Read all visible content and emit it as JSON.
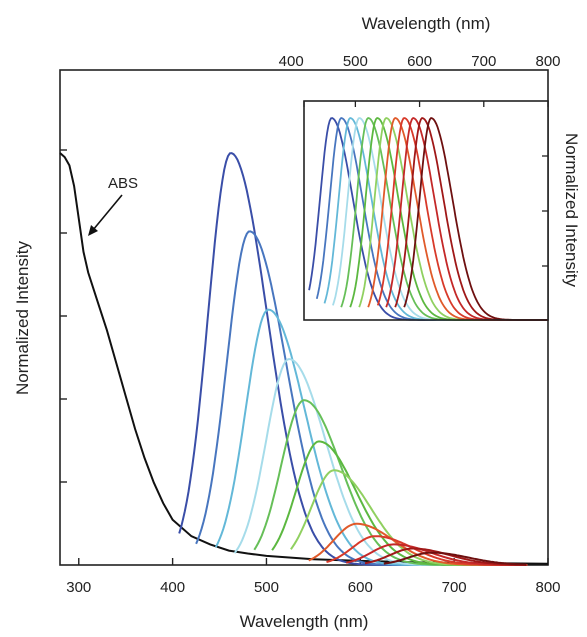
{
  "chart_data": [
    {
      "type": "line",
      "xlabel": "Wavelength (nm)",
      "ylabel": "Normalized Intensity",
      "xlim": [
        280,
        800
      ],
      "ylim": [
        0,
        1.0
      ],
      "x_ticks": [
        "300",
        "400",
        "500",
        "600",
        "700",
        "800"
      ],
      "y_ticks_labeled": false,
      "grid": false,
      "annotations": [
        {
          "text": "ABS",
          "target": {
            "x": 305,
            "y": 0.75
          }
        }
      ],
      "absorption": {
        "color": "#111111",
        "x": [
          280,
          285,
          290,
          295,
          300,
          305,
          310,
          320,
          330,
          340,
          350,
          360,
          370,
          380,
          390,
          400,
          420,
          440,
          460,
          480,
          500,
          550,
          600,
          650,
          700,
          800
        ],
        "y": [
          1.0,
          0.99,
          0.97,
          0.92,
          0.84,
          0.76,
          0.71,
          0.64,
          0.57,
          0.49,
          0.41,
          0.33,
          0.26,
          0.2,
          0.15,
          0.11,
          0.07,
          0.05,
          0.035,
          0.028,
          0.022,
          0.014,
          0.01,
          0.007,
          0.005,
          0.003
        ]
      },
      "emission": {
        "width": 44,
        "cut": 4.5,
        "series": [
          {
            "color": "#3a4ea8",
            "start": 407,
            "peak": 462,
            "amp": 1.0
          },
          {
            "color": "#4876bf",
            "start": 425,
            "peak": 482,
            "amp": 0.81
          },
          {
            "color": "#63b8d8",
            "start": 446,
            "peak": 502,
            "amp": 0.62
          },
          {
            "color": "#a6dcea",
            "start": 466,
            "peak": 524,
            "amp": 0.5
          },
          {
            "color": "#66bf58",
            "start": 487,
            "peak": 540,
            "amp": 0.4
          },
          {
            "color": "#5cb840",
            "start": 506,
            "peak": 556,
            "amp": 0.3
          },
          {
            "color": "#90d060",
            "start": 526,
            "peak": 572,
            "amp": 0.23
          },
          {
            "color": "#e05a2a",
            "start": 545,
            "peak": 596,
            "amp": 0.1
          },
          {
            "color": "#d83a2a",
            "start": 564,
            "peak": 616,
            "amp": 0.07
          },
          {
            "color": "#c42828",
            "start": 585,
            "peak": 636,
            "amp": 0.05
          },
          {
            "color": "#a01818",
            "start": 605,
            "peak": 656,
            "amp": 0.04
          },
          {
            "color": "#6e1010",
            "start": 625,
            "peak": 676,
            "amp": 0.03
          }
        ]
      }
    },
    {
      "type": "line",
      "position": "inset top-right",
      "xlabel": "Wavelength (nm)",
      "ylabel": "Normalized Intensity",
      "xlim": [
        420,
        800
      ],
      "ylim": [
        0,
        1.0
      ],
      "x_ticks": [
        "400",
        "500",
        "600",
        "700",
        "800"
      ],
      "y_ticks_labeled": false,
      "grid": false,
      "series": [
        {
          "color": "#3a4ea8",
          "start": 428,
          "peak": 463
        },
        {
          "color": "#4876bf",
          "start": 440,
          "peak": 478
        },
        {
          "color": "#63b8d8",
          "start": 452,
          "peak": 492
        },
        {
          "color": "#a6dcea",
          "start": 465,
          "peak": 506
        },
        {
          "color": "#66bf58",
          "start": 478,
          "peak": 520
        },
        {
          "color": "#5cb840",
          "start": 492,
          "peak": 534
        },
        {
          "color": "#90d060",
          "start": 506,
          "peak": 548
        },
        {
          "color": "#e05a2a",
          "start": 520,
          "peak": 562
        },
        {
          "color": "#d83a2a",
          "start": 535,
          "peak": 576
        },
        {
          "color": "#c42828",
          "start": 548,
          "peak": 590
        },
        {
          "color": "#a01818",
          "start": 562,
          "peak": 604
        },
        {
          "color": "#6e1010",
          "start": 576,
          "peak": 618
        }
      ]
    }
  ]
}
